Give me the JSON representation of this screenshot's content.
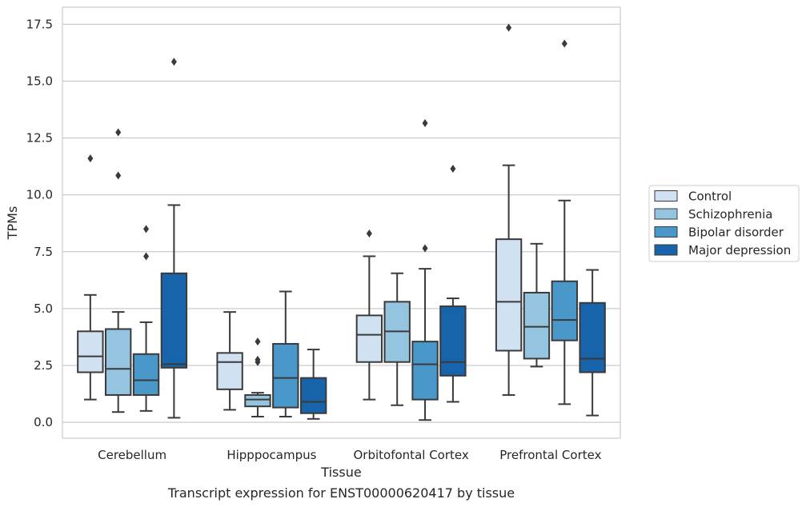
{
  "chart_data": {
    "type": "boxplot",
    "caption": "Transcript expression for ENST00000620417 by tissue",
    "xlabel": "Tissue",
    "ylabel": "TPMs",
    "ylim": [
      -0.7,
      18.25
    ],
    "yticks": [
      "0.0",
      "2.5",
      "5.0",
      "7.5",
      "10.0",
      "12.5",
      "15.0",
      "17.5"
    ],
    "grid": true,
    "legend_position": "right",
    "categories": [
      "Cerebellum",
      "Hipppocampus",
      "Orbitofontal Cortex",
      "Prefrontal Cortex"
    ],
    "series": [
      {
        "name": "Control",
        "color": "#d0e1f2",
        "boxes": [
          {
            "whislo": 1.0,
            "q1": 2.2,
            "med": 2.9,
            "q3": 4.0,
            "whishi": 5.6,
            "fliers": [
              11.6
            ]
          },
          {
            "whislo": 0.55,
            "q1": 1.45,
            "med": 2.65,
            "q3": 3.05,
            "whishi": 4.85,
            "fliers": []
          },
          {
            "whislo": 1.0,
            "q1": 2.65,
            "med": 3.85,
            "q3": 4.7,
            "whishi": 7.3,
            "fliers": [
              8.3
            ]
          },
          {
            "whislo": 1.2,
            "q1": 3.15,
            "med": 5.3,
            "q3": 8.05,
            "whishi": 11.3,
            "fliers": [
              17.35
            ]
          }
        ]
      },
      {
        "name": "Schizophrenia",
        "color": "#94c4df",
        "boxes": [
          {
            "whislo": 0.45,
            "q1": 1.2,
            "med": 2.35,
            "q3": 4.1,
            "whishi": 4.85,
            "fliers": [
              12.75,
              10.85
            ]
          },
          {
            "whislo": 0.25,
            "q1": 0.7,
            "med": 1.0,
            "q3": 1.2,
            "whishi": 1.3,
            "fliers": [
              3.55,
              2.75,
              2.65
            ]
          },
          {
            "whislo": 0.75,
            "q1": 2.65,
            "med": 4.0,
            "q3": 5.3,
            "whishi": 6.55,
            "fliers": []
          },
          {
            "whislo": 2.45,
            "q1": 2.8,
            "med": 4.2,
            "q3": 5.7,
            "whishi": 7.85,
            "fliers": []
          }
        ]
      },
      {
        "name": "Bipolar disorder",
        "color": "#4a98c9",
        "boxes": [
          {
            "whislo": 0.5,
            "q1": 1.2,
            "med": 1.85,
            "q3": 3.0,
            "whishi": 4.4,
            "fliers": [
              8.5,
              7.3
            ]
          },
          {
            "whislo": 0.25,
            "q1": 0.65,
            "med": 1.95,
            "q3": 3.45,
            "whishi": 5.75,
            "fliers": []
          },
          {
            "whislo": 0.1,
            "q1": 1.0,
            "med": 2.55,
            "q3": 3.55,
            "whishi": 6.75,
            "fliers": [
              13.15,
              7.65
            ]
          },
          {
            "whislo": 0.8,
            "q1": 3.6,
            "med": 4.5,
            "q3": 6.2,
            "whishi": 9.75,
            "fliers": [
              16.65
            ]
          }
        ]
      },
      {
        "name": "Major depression",
        "color": "#1764ab",
        "boxes": [
          {
            "whislo": 0.2,
            "q1": 2.4,
            "med": 2.55,
            "q3": 6.55,
            "whishi": 9.55,
            "fliers": [
              15.85
            ]
          },
          {
            "whislo": 0.15,
            "q1": 0.4,
            "med": 0.9,
            "q3": 1.95,
            "whishi": 3.2,
            "fliers": []
          },
          {
            "whislo": 0.9,
            "q1": 2.05,
            "med": 2.65,
            "q3": 5.1,
            "whishi": 5.45,
            "fliers": [
              11.15
            ]
          },
          {
            "whislo": 0.3,
            "q1": 2.2,
            "med": 2.8,
            "q3": 5.25,
            "whishi": 6.7,
            "fliers": []
          }
        ]
      }
    ]
  }
}
